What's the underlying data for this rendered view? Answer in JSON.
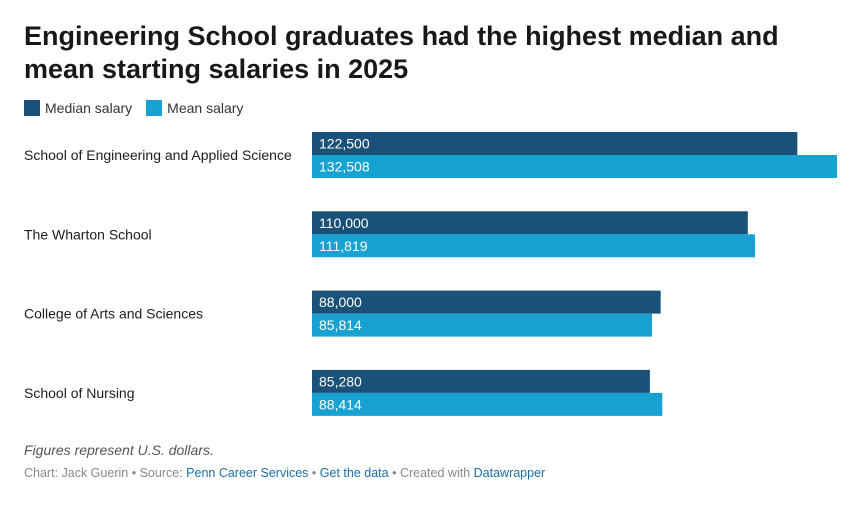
{
  "title": "Engineering School graduates had the highest median and mean starting salaries in 2025",
  "legend": [
    {
      "label": "Median salary",
      "color": "#1a5179"
    },
    {
      "label": "Mean salary",
      "color": "#17a2d1"
    }
  ],
  "chart_data": {
    "type": "bar",
    "orientation": "horizontal",
    "categories": [
      "School of Engineering and Applied Science",
      "The Wharton School",
      "College of Arts and Sciences",
      "School of Nursing"
    ],
    "series": [
      {
        "name": "Median salary",
        "color": "#1a5179",
        "values": [
          122500,
          110000,
          88000,
          85280
        ],
        "labels": [
          "122,500",
          "110,000",
          "88,000",
          "85,280"
        ]
      },
      {
        "name": "Mean salary",
        "color": "#17a2d1",
        "values": [
          132508,
          111819,
          85814,
          88414
        ],
        "labels": [
          "132,508",
          "111,819",
          "85,814",
          "88,414"
        ]
      }
    ],
    "xlim": [
      0,
      132508
    ],
    "grid": false,
    "legend_position": "top-left"
  },
  "note": "Figures represent U.S. dollars.",
  "footer": {
    "chart_by": "Chart: Jack Guerin",
    "source_prefix": "Source:",
    "source": "Penn Career Services",
    "get_data": "Get the data",
    "created_with_prefix": "Created with",
    "created_with": "Datawrapper",
    "separator": "•"
  }
}
